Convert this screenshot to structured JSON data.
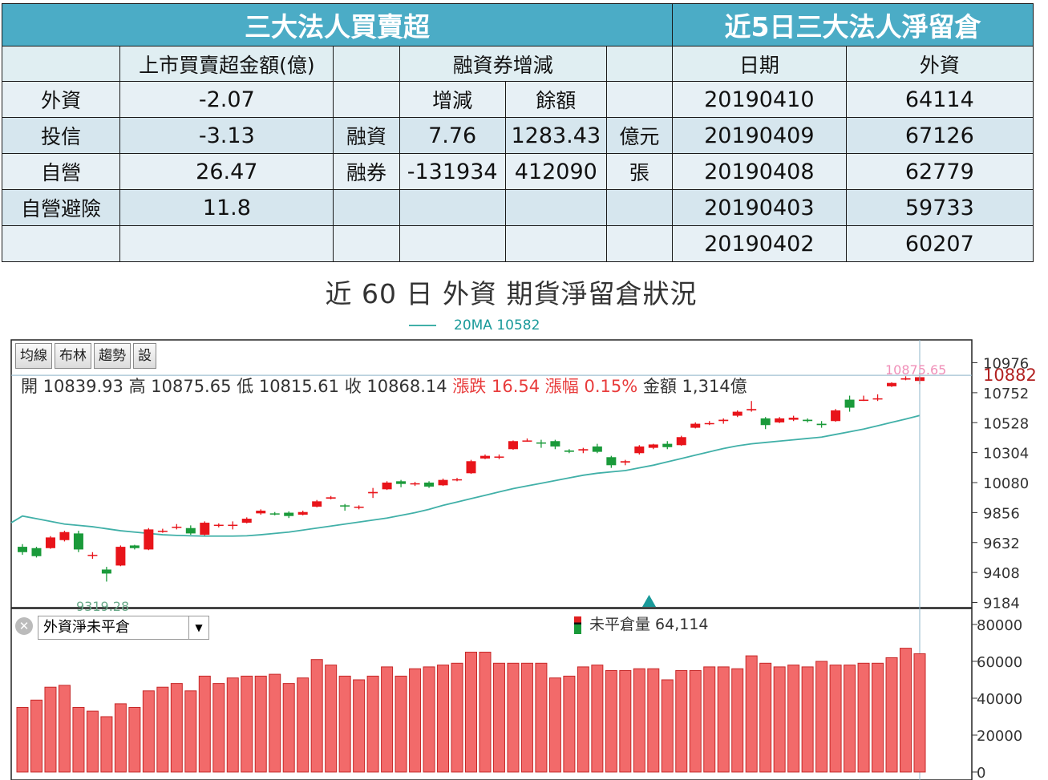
{
  "table1": {
    "title": "三大法人買賣超",
    "col_amount": "上市買賣超金額(億)",
    "col_margin": "融資券增減",
    "sub_change": "增減",
    "sub_balance": "餘額",
    "rows": [
      {
        "label": "外資",
        "value": "-2.07"
      },
      {
        "label": "投信",
        "value": "-3.13"
      },
      {
        "label": "自營",
        "value": "26.47"
      },
      {
        "label": "自營避險",
        "value": "11.8"
      }
    ],
    "margin_rows": [
      {
        "label": "融資",
        "change": "7.76",
        "balance": "1283.43",
        "unit": "億元"
      },
      {
        "label": "融券",
        "change": "-131934",
        "balance": "412090",
        "unit": "張"
      }
    ]
  },
  "table2": {
    "title": "近5日三大法人淨留倉",
    "col_date": "日期",
    "col_foreign": "外資",
    "rows": [
      {
        "date": "20190410",
        "value": "64114"
      },
      {
        "date": "20190409",
        "value": "67126"
      },
      {
        "date": "20190408",
        "value": "62779"
      },
      {
        "date": "20190403",
        "value": "59733"
      },
      {
        "date": "20190402",
        "value": "60207"
      }
    ]
  },
  "chart_title": "近 60 日 外資 期貨淨留倉狀況",
  "legend_ma": "20MA 10582",
  "toolbar": [
    "均線",
    "布林",
    "趨勢",
    "設"
  ],
  "ohlc": {
    "open": "開 10839.93",
    "high": "高 10875.65",
    "low": "低 10815.61",
    "close": "收 10868.14",
    "change": "漲跌 16.54",
    "pct": "漲幅 0.15%",
    "amount": "金額 1,314億"
  },
  "price_axis": {
    "ticks": [
      "10976",
      "10752",
      "10528",
      "10304",
      "10080",
      "9856",
      "9632",
      "9408",
      "9184"
    ],
    "current": "10882",
    "high_label": "10875.65",
    "low_label": "9319.28"
  },
  "oi_panel": {
    "selector": "外資淨未平倉",
    "label": "未平倉量 64,114",
    "ticks": [
      "80000",
      "60000",
      "40000",
      "20000",
      "0"
    ]
  },
  "colors": {
    "header": "#4bacc6",
    "up": "#e8141a",
    "down": "#1a9a3a",
    "ma": "#41b0a8",
    "bar": "#f26a6a"
  },
  "chart_data": [
    {
      "type": "candlestick",
      "title": "",
      "ylim": [
        9184,
        10976
      ],
      "candles": [
        {
          "o": 9600,
          "h": 9620,
          "l": 9540,
          "c": 9560
        },
        {
          "o": 9590,
          "h": 9600,
          "l": 9520,
          "c": 9530
        },
        {
          "o": 9590,
          "h": 9680,
          "l": 9585,
          "c": 9670
        },
        {
          "o": 9650,
          "h": 9720,
          "l": 9640,
          "c": 9710
        },
        {
          "o": 9700,
          "h": 9720,
          "l": 9560,
          "c": 9580
        },
        {
          "o": 9540,
          "h": 9560,
          "l": 9510,
          "c": 9540
        },
        {
          "o": 9430,
          "h": 9450,
          "l": 9340,
          "c": 9400
        },
        {
          "o": 9460,
          "h": 9610,
          "l": 9455,
          "c": 9600
        },
        {
          "o": 9610,
          "h": 9615,
          "l": 9580,
          "c": 9590
        },
        {
          "o": 9580,
          "h": 9740,
          "l": 9575,
          "c": 9730
        },
        {
          "o": 9720,
          "h": 9735,
          "l": 9705,
          "c": 9720
        },
        {
          "o": 9750,
          "h": 9770,
          "l": 9730,
          "c": 9750
        },
        {
          "o": 9740,
          "h": 9760,
          "l": 9690,
          "c": 9700
        },
        {
          "o": 9690,
          "h": 9790,
          "l": 9685,
          "c": 9780
        },
        {
          "o": 9760,
          "h": 9775,
          "l": 9745,
          "c": 9765
        },
        {
          "o": 9760,
          "h": 9790,
          "l": 9730,
          "c": 9765
        },
        {
          "o": 9780,
          "h": 9820,
          "l": 9775,
          "c": 9810
        },
        {
          "o": 9850,
          "h": 9880,
          "l": 9840,
          "c": 9870
        },
        {
          "o": 9850,
          "h": 9860,
          "l": 9835,
          "c": 9845
        },
        {
          "o": 9855,
          "h": 9865,
          "l": 9815,
          "c": 9830
        },
        {
          "o": 9840,
          "h": 9870,
          "l": 9835,
          "c": 9860
        },
        {
          "o": 9900,
          "h": 9950,
          "l": 9895,
          "c": 9940
        },
        {
          "o": 9960,
          "h": 9980,
          "l": 9955,
          "c": 9970
        },
        {
          "o": 9910,
          "h": 9920,
          "l": 9870,
          "c": 9905
        },
        {
          "o": 9900,
          "h": 9910,
          "l": 9880,
          "c": 9900
        },
        {
          "o": 10000,
          "h": 10040,
          "l": 9965,
          "c": 10010
        },
        {
          "o": 10030,
          "h": 10090,
          "l": 10025,
          "c": 10080
        },
        {
          "o": 10090,
          "h": 10100,
          "l": 10045,
          "c": 10070
        },
        {
          "o": 10075,
          "h": 10085,
          "l": 10055,
          "c": 10075
        },
        {
          "o": 10080,
          "h": 10090,
          "l": 10040,
          "c": 10050
        },
        {
          "o": 10060,
          "h": 10110,
          "l": 10055,
          "c": 10100
        },
        {
          "o": 10100,
          "h": 10115,
          "l": 10090,
          "c": 10105
        },
        {
          "o": 10150,
          "h": 10250,
          "l": 10145,
          "c": 10240
        },
        {
          "o": 10260,
          "h": 10290,
          "l": 10255,
          "c": 10280
        },
        {
          "o": 10270,
          "h": 10290,
          "l": 10255,
          "c": 10275
        },
        {
          "o": 10330,
          "h": 10395,
          "l": 10325,
          "c": 10390
        },
        {
          "o": 10390,
          "h": 10410,
          "l": 10385,
          "c": 10395
        },
        {
          "o": 10380,
          "h": 10400,
          "l": 10340,
          "c": 10375
        },
        {
          "o": 10390,
          "h": 10400,
          "l": 10330,
          "c": 10350
        },
        {
          "o": 10320,
          "h": 10330,
          "l": 10300,
          "c": 10310
        },
        {
          "o": 10320,
          "h": 10340,
          "l": 10300,
          "c": 10330
        },
        {
          "o": 10350,
          "h": 10370,
          "l": 10300,
          "c": 10310
        },
        {
          "o": 10270,
          "h": 10280,
          "l": 10190,
          "c": 10210
        },
        {
          "o": 10230,
          "h": 10250,
          "l": 10210,
          "c": 10240
        },
        {
          "o": 10300,
          "h": 10360,
          "l": 10290,
          "c": 10350
        },
        {
          "o": 10340,
          "h": 10370,
          "l": 10330,
          "c": 10365
        },
        {
          "o": 10370,
          "h": 10390,
          "l": 10330,
          "c": 10345
        },
        {
          "o": 10360,
          "h": 10430,
          "l": 10355,
          "c": 10420
        },
        {
          "o": 10490,
          "h": 10530,
          "l": 10485,
          "c": 10520
        },
        {
          "o": 10520,
          "h": 10540,
          "l": 10510,
          "c": 10525
        },
        {
          "o": 10540,
          "h": 10560,
          "l": 10520,
          "c": 10550
        },
        {
          "o": 10580,
          "h": 10620,
          "l": 10570,
          "c": 10610
        },
        {
          "o": 10620,
          "h": 10690,
          "l": 10610,
          "c": 10630
        },
        {
          "o": 10560,
          "h": 10570,
          "l": 10480,
          "c": 10510
        },
        {
          "o": 10530,
          "h": 10570,
          "l": 10525,
          "c": 10560
        },
        {
          "o": 10550,
          "h": 10580,
          "l": 10540,
          "c": 10565
        },
        {
          "o": 10550,
          "h": 10560,
          "l": 10530,
          "c": 10540
        },
        {
          "o": 10520,
          "h": 10540,
          "l": 10490,
          "c": 10510
        },
        {
          "o": 10540,
          "h": 10630,
          "l": 10535,
          "c": 10620
        },
        {
          "o": 10700,
          "h": 10730,
          "l": 10610,
          "c": 10640
        },
        {
          "o": 10700,
          "h": 10730,
          "l": 10690,
          "c": 10700
        },
        {
          "o": 10710,
          "h": 10740,
          "l": 10690,
          "c": 10710
        },
        {
          "o": 10800,
          "h": 10830,
          "l": 10795,
          "c": 10825
        },
        {
          "o": 10850,
          "h": 10875,
          "l": 10845,
          "c": 10860
        },
        {
          "o": 10839.93,
          "h": 10875.65,
          "l": 10815.61,
          "c": 10868.14
        }
      ],
      "ma20": [
        9830,
        9810,
        9790,
        9770,
        9760,
        9750,
        9735,
        9720,
        9710,
        9700,
        9690,
        9685,
        9682,
        9680,
        9680,
        9680,
        9682,
        9690,
        9700,
        9710,
        9725,
        9740,
        9755,
        9770,
        9785,
        9800,
        9815,
        9835,
        9855,
        9880,
        9910,
        9935,
        9960,
        9985,
        10010,
        10035,
        10055,
        10075,
        10095,
        10115,
        10135,
        10150,
        10160,
        10170,
        10190,
        10210,
        10235,
        10260,
        10285,
        10310,
        10335,
        10355,
        10370,
        10380,
        10390,
        10400,
        10410,
        10420,
        10440,
        10460,
        10480,
        10505,
        10530,
        10555,
        10582
      ]
    },
    {
      "type": "bar",
      "title": "",
      "ylim": [
        0,
        80000
      ],
      "values": [
        35000,
        39000,
        46000,
        47000,
        35000,
        33000,
        30000,
        37000,
        35000,
        44000,
        46000,
        48000,
        44000,
        52000,
        48000,
        51000,
        52000,
        52000,
        53000,
        48000,
        51000,
        61000,
        58000,
        52000,
        50000,
        52000,
        57000,
        52000,
        56000,
        57000,
        58000,
        59000,
        65000,
        65000,
        59000,
        59000,
        59000,
        59000,
        51000,
        52000,
        57000,
        58000,
        55000,
        55000,
        56000,
        56000,
        50000,
        55000,
        55000,
        57000,
        57000,
        56000,
        63000,
        59000,
        57000,
        58000,
        57000,
        60000,
        58000,
        58000,
        59000,
        59000,
        62000,
        67126,
        64114
      ]
    }
  ]
}
